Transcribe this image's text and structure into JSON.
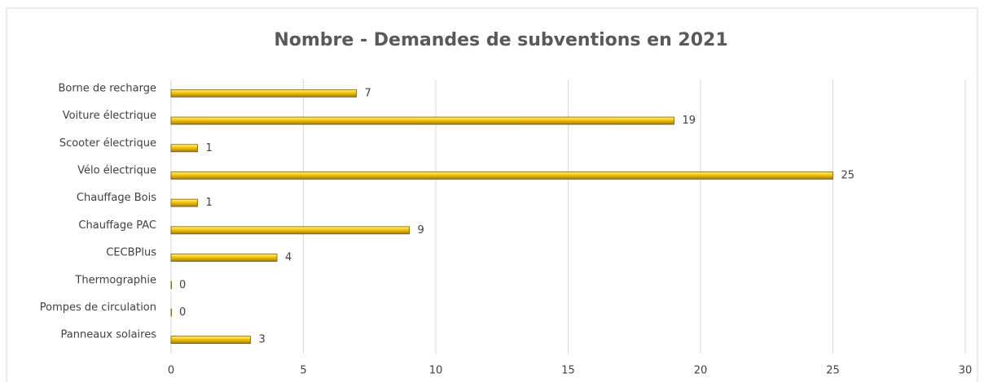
{
  "chart_data": {
    "type": "hbar",
    "title": "Nombre - Demandes de subventions  en 2021",
    "categories": [
      "Borne de recharge",
      "Voiture électrique",
      "Scooter électrique",
      "Vélo électrique",
      "Chauffage Bois",
      "Chauffage PAC",
      "CECBPlus",
      "Thermographie",
      "Pompes de circulation",
      "Panneaux solaires"
    ],
    "values": [
      7,
      19,
      1,
      25,
      1,
      9,
      4,
      0,
      0,
      3
    ],
    "color": "#e6b800",
    "xlim": [
      0,
      30
    ],
    "xticks": [
      0,
      5,
      10,
      15,
      20,
      25,
      30
    ],
    "grid": true
  }
}
